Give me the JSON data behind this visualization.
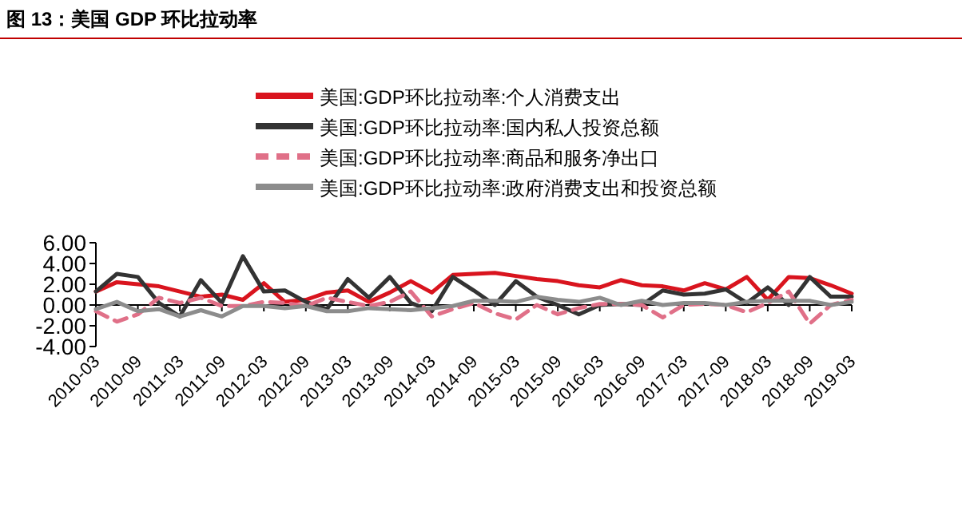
{
  "chart_data": {
    "type": "line",
    "title": "图 13：美国 GDP 环比拉动率",
    "categories": [
      "2010-03",
      null,
      "2010-09",
      null,
      "2011-03",
      null,
      "2011-09",
      null,
      "2012-03",
      null,
      "2012-09",
      null,
      "2013-03",
      null,
      "2013-09",
      null,
      "2014-03",
      null,
      "2014-09",
      null,
      "2015-03",
      null,
      "2015-09",
      null,
      "2016-03",
      null,
      "2016-09",
      null,
      "2017-03",
      null,
      "2017-09",
      null,
      "2018-03",
      null,
      "2018-09",
      null,
      "2019-03"
    ],
    "series": [
      {
        "name": "美国:GDP环比拉动率:个人消费支出",
        "color": "#d9141e",
        "values": [
          1.3,
          2.2,
          2.0,
          1.8,
          1.3,
          0.8,
          1.0,
          0.5,
          2.1,
          0.3,
          0.5,
          1.2,
          1.4,
          0.3,
          1.2,
          2.3,
          1.2,
          2.9,
          3.0,
          3.1,
          2.8,
          2.5,
          2.3,
          1.9,
          1.7,
          2.4,
          1.9,
          1.8,
          1.4,
          2.1,
          1.5,
          2.7,
          0.5,
          2.7,
          2.6,
          1.9,
          1.1
        ]
      },
      {
        "name": "美国:GDP环比拉动率:国内私人投资总额",
        "color": "#333333",
        "values": [
          1.3,
          3.0,
          2.7,
          0.2,
          -1.1,
          2.4,
          0.2,
          4.7,
          1.3,
          1.4,
          0.3,
          -0.4,
          2.5,
          0.7,
          2.7,
          0.2,
          -0.6,
          2.7,
          1.4,
          0.0,
          2.3,
          0.8,
          0.0,
          -0.9,
          0.0,
          0.1,
          0.0,
          1.4,
          1.0,
          1.1,
          1.5,
          0.2,
          1.7,
          0.0,
          2.7,
          0.8,
          0.8
        ]
      },
      {
        "name": "美国:GDP环比拉动率:商品和服务净出口",
        "color": "#e07088",
        "line_style": "dashed",
        "values": [
          -0.6,
          -1.6,
          -0.9,
          0.7,
          0.2,
          0.7,
          -0.1,
          -0.1,
          0.3,
          0.2,
          -0.1,
          0.7,
          0.3,
          -0.1,
          0.3,
          1.3,
          -1.1,
          -0.4,
          0.2,
          -0.8,
          -1.4,
          0.0,
          -0.9,
          -0.3,
          0.1,
          0.1,
          0.0,
          -1.2,
          0.0,
          0.1,
          0.0,
          -0.7,
          0.2,
          1.3,
          -1.8,
          0.0,
          0.5
        ]
      },
      {
        "name": "美国:GDP环比拉动率:政府消费支出和投资总额",
        "color": "#8c8c8c",
        "values": [
          -0.4,
          0.3,
          -0.6,
          -0.4,
          -1.1,
          -0.5,
          -1.1,
          -0.1,
          -0.1,
          -0.3,
          -0.1,
          -0.6,
          -0.6,
          -0.3,
          -0.4,
          -0.5,
          -0.3,
          -0.1,
          0.4,
          0.4,
          0.3,
          0.8,
          0.5,
          0.3,
          0.7,
          0.0,
          0.4,
          0.0,
          0.2,
          0.2,
          0.0,
          0.3,
          0.4,
          0.4,
          0.4,
          0.0,
          0.3
        ]
      }
    ],
    "ylim": [
      -4,
      6
    ],
    "yticks": [
      {
        "value": 6,
        "label": "6.00"
      },
      {
        "value": 4,
        "label": "4.00"
      },
      {
        "value": 2,
        "label": "2.00"
      },
      {
        "value": 0,
        "label": "0.00"
      },
      {
        "value": -2,
        "label": "-2.00"
      },
      {
        "value": -4,
        "label": "-4.00"
      }
    ],
    "legend": "top"
  }
}
